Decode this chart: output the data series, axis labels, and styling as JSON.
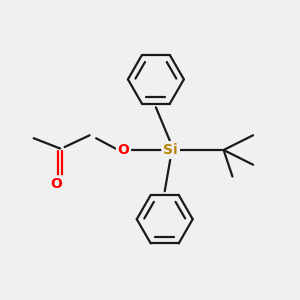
{
  "bg_color": "#f0f0f0",
  "line_color": "#1a1a1a",
  "o_color": "#ff0000",
  "si_color": "#b8860b",
  "line_width": 1.6,
  "fig_width": 3.0,
  "fig_height": 3.0,
  "dpi": 100,
  "xlim": [
    0,
    10
  ],
  "ylim": [
    0,
    10
  ]
}
